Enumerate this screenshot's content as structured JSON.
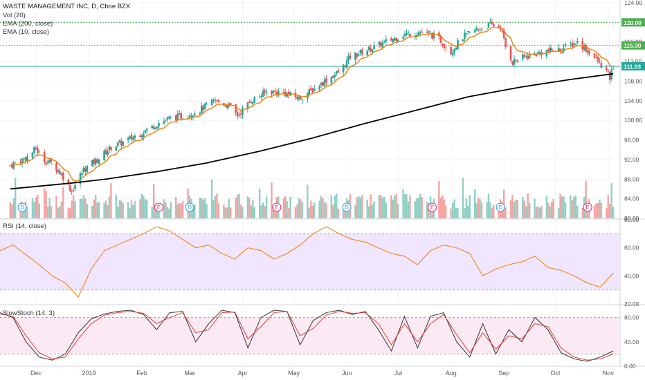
{
  "main_legend": {
    "title": "WASTE MANAGEMENT INC, D, Cboe BZX",
    "vol": "Vol (20)",
    "ema200": "EMA (200, close)",
    "ema10": "EMA (10, close)"
  },
  "rsi_legend": "RSI (14, close)",
  "stoch_legend": "SlowStoch (14, 3)",
  "colors": {
    "up": "#26a69a",
    "down": "#ef5350",
    "vol_up": "#8fcfc4",
    "vol_down": "#f4a3a1",
    "ema10": "#f57c00",
    "ema200": "#000000",
    "price_line": "#26a69a",
    "level_line": "#4caf50",
    "rsi_line": "#f57c00",
    "rsi_band": "#f0e6ff",
    "stoch_k": "#333333",
    "stoch_d": "#e53935",
    "stoch_band": "#fbeaf3"
  },
  "chart_data": [
    {
      "type": "candlestick",
      "title": "WASTE MANAGEMENT INC, D, Cboe BZX",
      "ylim": [
        80,
        124
      ],
      "y_ticks": [
        "124.00",
        "120.00",
        "116.00",
        "112.00",
        "108.00",
        "104.00",
        "100.00",
        "96.00",
        "92.00",
        "88.00",
        "84.00",
        "80.00"
      ],
      "x_labels": [
        "Dec",
        "2019",
        "Feb",
        "Mar",
        "Apr",
        "May",
        "Jun",
        "Jul",
        "Aug",
        "Sep",
        "Oct",
        "Nov"
      ],
      "price_labels": [
        {
          "value": 120.0,
          "label": "120.00",
          "style": "level"
        },
        {
          "value": 115.3,
          "label": "115.30",
          "style": "level"
        },
        {
          "value": 111.03,
          "label": "111.03",
          "style": "last"
        }
      ],
      "close_series": [
        {
          "date": "2018-11-20",
          "close": 90.8
        },
        {
          "date": "2018-11-30",
          "close": 92.5
        },
        {
          "date": "2018-12-05",
          "close": 94.2
        },
        {
          "date": "2018-12-10",
          "close": 91.8
        },
        {
          "date": "2018-12-15",
          "close": 91.2
        },
        {
          "date": "2018-12-21",
          "close": 88.5
        },
        {
          "date": "2018-12-26",
          "close": 85.6
        },
        {
          "date": "2019-01-02",
          "close": 90.0
        },
        {
          "date": "2019-01-10",
          "close": 92.0
        },
        {
          "date": "2019-01-18",
          "close": 94.5
        },
        {
          "date": "2019-01-28",
          "close": 96.0
        },
        {
          "date": "2019-02-05",
          "close": 97.5
        },
        {
          "date": "2019-02-15",
          "close": 99.5
        },
        {
          "date": "2019-02-22",
          "close": 100.5
        },
        {
          "date": "2019-03-01",
          "close": 100.8
        },
        {
          "date": "2019-03-10",
          "close": 102.0
        },
        {
          "date": "2019-03-20",
          "close": 104.0
        },
        {
          "date": "2019-03-28",
          "close": 103.0
        },
        {
          "date": "2019-04-02",
          "close": 101.0
        },
        {
          "date": "2019-04-10",
          "close": 104.0
        },
        {
          "date": "2019-04-20",
          "close": 106.0
        },
        {
          "date": "2019-04-30",
          "close": 105.5
        },
        {
          "date": "2019-05-08",
          "close": 104.5
        },
        {
          "date": "2019-05-15",
          "close": 106.0
        },
        {
          "date": "2019-05-25",
          "close": 108.5
        },
        {
          "date": "2019-06-01",
          "close": 110.0
        },
        {
          "date": "2019-06-07",
          "close": 113.0
        },
        {
          "date": "2019-06-18",
          "close": 114.5
        },
        {
          "date": "2019-06-28",
          "close": 116.0
        },
        {
          "date": "2019-07-08",
          "close": 117.5
        },
        {
          "date": "2019-07-18",
          "close": 118.0
        },
        {
          "date": "2019-07-28",
          "close": 117.0
        },
        {
          "date": "2019-08-05",
          "close": 114.0
        },
        {
          "date": "2019-08-12",
          "close": 117.0
        },
        {
          "date": "2019-08-20",
          "close": 118.5
        },
        {
          "date": "2019-08-28",
          "close": 119.5
        },
        {
          "date": "2019-09-03",
          "close": 119.0
        },
        {
          "date": "2019-09-06",
          "close": 115.0
        },
        {
          "date": "2019-09-10",
          "close": 112.0
        },
        {
          "date": "2019-09-18",
          "close": 113.0
        },
        {
          "date": "2019-09-28",
          "close": 114.0
        },
        {
          "date": "2019-10-08",
          "close": 114.5
        },
        {
          "date": "2019-10-18",
          "close": 116.0
        },
        {
          "date": "2019-10-25",
          "close": 114.0
        },
        {
          "date": "2019-10-30",
          "close": 112.0
        },
        {
          "date": "2019-11-04",
          "close": 110.0
        },
        {
          "date": "2019-11-06",
          "close": 108.5
        },
        {
          "date": "2019-11-08",
          "close": 111.03
        }
      ],
      "ema200": [
        {
          "date": "2018-11-20",
          "value": 86.0
        },
        {
          "date": "2018-12-26",
          "value": 87.2
        },
        {
          "date": "2019-01-15",
          "value": 88.0
        },
        {
          "date": "2019-02-15",
          "value": 89.6
        },
        {
          "date": "2019-03-15",
          "value": 91.3
        },
        {
          "date": "2019-04-15",
          "value": 93.7
        },
        {
          "date": "2019-05-15",
          "value": 96.3
        },
        {
          "date": "2019-06-15",
          "value": 99.3
        },
        {
          "date": "2019-07-15",
          "value": 102.0
        },
        {
          "date": "2019-08-15",
          "value": 104.8
        },
        {
          "date": "2019-09-15",
          "value": 106.8
        },
        {
          "date": "2019-10-15",
          "value": 108.4
        },
        {
          "date": "2019-11-08",
          "value": 109.5
        }
      ]
    },
    {
      "type": "line",
      "title": "RSI (14, close)",
      "ylim": [
        20,
        80
      ],
      "y_ticks": [
        "80.00",
        "60.00",
        "40.00",
        "20.00"
      ],
      "bands": [
        30,
        70
      ],
      "series": [
        {
          "name": "RSI",
          "values": [
            58,
            62,
            55,
            48,
            40,
            35,
            25,
            45,
            58,
            62,
            66,
            70,
            75,
            72,
            66,
            60,
            62,
            56,
            52,
            60,
            58,
            52,
            56,
            62,
            70,
            75,
            70,
            66,
            64,
            60,
            56,
            54,
            48,
            58,
            62,
            60,
            56,
            40,
            45,
            48,
            50,
            54,
            46,
            44,
            40,
            35,
            32,
            42
          ]
        }
      ]
    },
    {
      "type": "line",
      "title": "SlowStoch (14, 3)",
      "ylim": [
        0,
        100
      ],
      "y_ticks": [
        "80.00",
        "40.00",
        "0.00"
      ],
      "bands": [
        20,
        80
      ],
      "series": [
        {
          "name": "%K",
          "values": [
            88,
            80,
            40,
            15,
            10,
            20,
            55,
            78,
            86,
            90,
            92,
            85,
            60,
            88,
            90,
            40,
            70,
            92,
            88,
            30,
            80,
            92,
            90,
            35,
            75,
            88,
            92,
            85,
            90,
            60,
            25,
            82,
            30,
            82,
            88,
            40,
            15,
            70,
            20,
            60,
            40,
            80,
            60,
            22,
            12,
            8,
            15,
            25
          ]
        },
        {
          "name": "%D",
          "values": [
            86,
            82,
            50,
            22,
            12,
            15,
            45,
            70,
            84,
            88,
            90,
            87,
            70,
            80,
            88,
            55,
            60,
            88,
            89,
            45,
            65,
            88,
            90,
            50,
            62,
            84,
            90,
            87,
            88,
            70,
            35,
            70,
            40,
            70,
            85,
            52,
            22,
            55,
            28,
            50,
            45,
            70,
            65,
            30,
            15,
            10,
            12,
            20
          ]
        }
      ]
    }
  ]
}
